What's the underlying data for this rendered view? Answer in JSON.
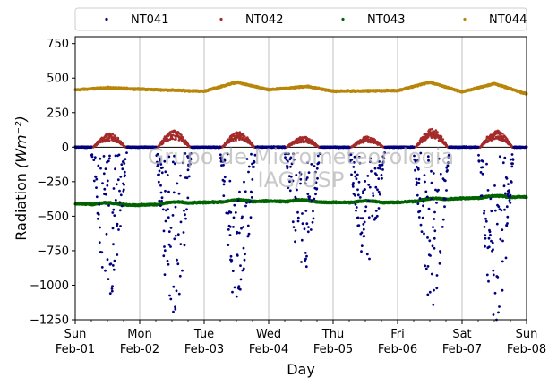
{
  "chart_data": {
    "type": "scatter",
    "xlabel": "Day",
    "ylabel": "Radiation",
    "ylabel_unit": "(Wm⁻²)",
    "ylim": [
      -1250,
      800
    ],
    "yticks": [
      -1250,
      -1000,
      -750,
      -500,
      -250,
      0,
      250,
      500,
      750
    ],
    "xlim": [
      0,
      7
    ],
    "xticks": [
      {
        "value": 0,
        "line1": "Sun",
        "line2": "Feb-01"
      },
      {
        "value": 1,
        "line1": "Mon",
        "line2": "Feb-02"
      },
      {
        "value": 2,
        "line1": "Tue",
        "line2": "Feb-03"
      },
      {
        "value": 3,
        "line1": "Wed",
        "line2": "Feb-04"
      },
      {
        "value": 4,
        "line1": "Thu",
        "line2": "Feb-05"
      },
      {
        "value": 5,
        "line1": "Fri",
        "line2": "Feb-06"
      },
      {
        "value": 6,
        "line1": "Sat",
        "line2": "Feb-07"
      },
      {
        "value": 7,
        "line1": "Sun",
        "line2": "Feb-08"
      }
    ],
    "grid": "vertical",
    "legend_position": "top",
    "watermark": [
      "Grupo de Micrometeorologia",
      "IAG/USP"
    ],
    "series": [
      {
        "name": "NT041",
        "color": "#00007f",
        "kind": "nocturnal-day-dips",
        "day_minima": [
          -1050,
          -1250,
          -1150,
          -880,
          -820,
          -1130,
          -1230
        ],
        "sample_points": [
          {
            "x": 0.25,
            "y": -120
          },
          {
            "x": 0.4,
            "y": -380
          },
          {
            "x": 0.55,
            "y": -1050
          },
          {
            "x": 1.45,
            "y": -1250
          },
          {
            "x": 2.4,
            "y": -1100
          },
          {
            "x": 3.6,
            "y": -880
          },
          {
            "x": 4.5,
            "y": -820
          },
          {
            "x": 5.5,
            "y": -1130
          },
          {
            "x": 6.45,
            "y": -1230
          }
        ]
      },
      {
        "name": "NT042",
        "color": "#a52a2a",
        "kind": "daytime-bumps",
        "day_peaks": [
          90,
          110,
          100,
          70,
          70,
          120,
          110
        ],
        "baseline": 0
      },
      {
        "name": "NT043",
        "color": "#006400",
        "kind": "near-constant",
        "start_value": -410,
        "end_value": -360,
        "sample_points": [
          {
            "x": 0,
            "y": -410
          },
          {
            "x": 1,
            "y": -420
          },
          {
            "x": 2,
            "y": -400
          },
          {
            "x": 3,
            "y": -390
          },
          {
            "x": 4,
            "y": -400
          },
          {
            "x": 5,
            "y": -400
          },
          {
            "x": 6,
            "y": -370
          },
          {
            "x": 7,
            "y": -360
          }
        ]
      },
      {
        "name": "NT044",
        "color": "#b8860b",
        "kind": "near-constant",
        "sample_points": [
          {
            "x": 0,
            "y": 415
          },
          {
            "x": 0.5,
            "y": 430
          },
          {
            "x": 1,
            "y": 420
          },
          {
            "x": 2,
            "y": 405
          },
          {
            "x": 2.5,
            "y": 470
          },
          {
            "x": 3,
            "y": 415
          },
          {
            "x": 3.6,
            "y": 440
          },
          {
            "x": 4,
            "y": 405
          },
          {
            "x": 5,
            "y": 410
          },
          {
            "x": 5.5,
            "y": 470
          },
          {
            "x": 6,
            "y": 400
          },
          {
            "x": 6.5,
            "y": 460
          },
          {
            "x": 7,
            "y": 385
          }
        ]
      }
    ]
  }
}
